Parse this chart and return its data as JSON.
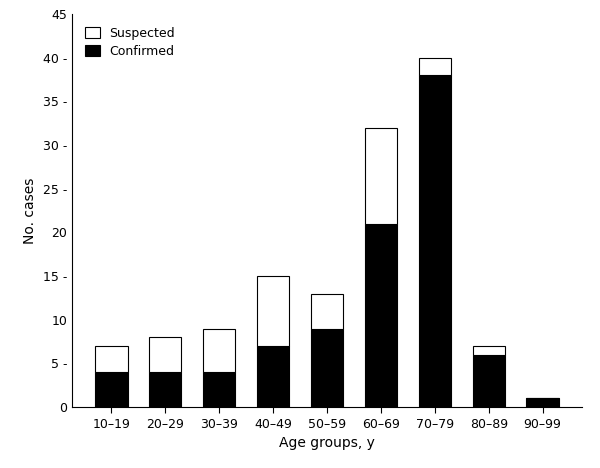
{
  "categories": [
    "10–19",
    "20–29",
    "30–39",
    "40–49",
    "50–59",
    "60–69",
    "70–79",
    "80–89",
    "90–99"
  ],
  "confirmed": [
    4,
    4,
    4,
    7,
    9,
    21,
    38,
    6,
    1
  ],
  "suspected": [
    3,
    4,
    5,
    8,
    4,
    11,
    2,
    1,
    0
  ],
  "confirmed_color": "#000000",
  "suspected_color": "#ffffff",
  "bar_edgecolor": "#000000",
  "ylabel": "No. cases",
  "xlabel": "Age groups, y",
  "ylim": [
    0,
    45
  ],
  "yticks": [
    0,
    5,
    10,
    15,
    20,
    25,
    30,
    35,
    40,
    45
  ],
  "ytick_labels": [
    "0",
    "5 -",
    "10",
    "15 -",
    "20",
    "25 -",
    "30 -",
    "35 -",
    "40 -",
    "45"
  ],
  "legend_labels": [
    "Suspected",
    "Confirmed"
  ],
  "legend_colors": [
    "#ffffff",
    "#000000"
  ],
  "background_color": "#ffffff",
  "bar_width": 0.6,
  "tick_fontsize": 9,
  "label_fontsize": 10,
  "legend_fontsize": 9
}
